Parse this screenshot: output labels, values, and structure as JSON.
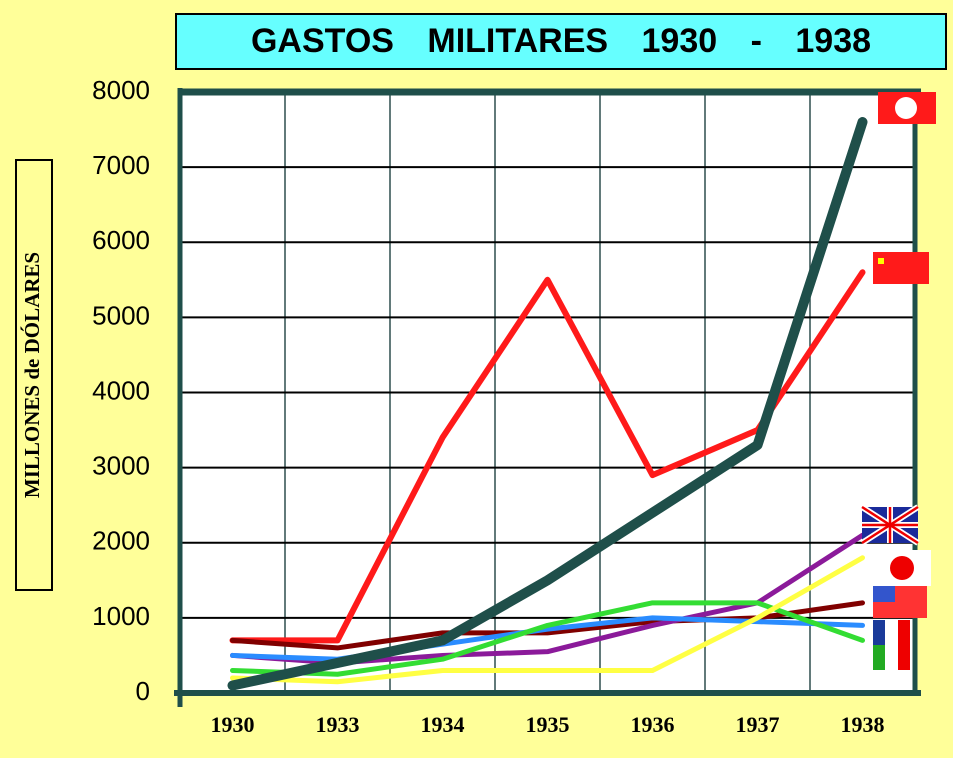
{
  "chart_data": {
    "type": "line",
    "title": "GASTOS MILITARES 1930 - 1938",
    "y_label": "MILLONES de DÓLARES",
    "categories": [
      "1930",
      "1933",
      "1934",
      "1935",
      "1936",
      "1937",
      "1938"
    ],
    "ylim": [
      0,
      8000
    ],
    "yticks": [
      0,
      1000,
      2000,
      3000,
      4000,
      5000,
      6000,
      7000,
      8000
    ],
    "grid": true,
    "series": [
      {
        "color": "#ff1a1a",
        "values": [
          700,
          700,
          3400,
          5500,
          2900,
          3500,
          5600
        ]
      },
      {
        "color": "#800000",
        "values": [
          700,
          600,
          800,
          800,
          950,
          1000,
          1200
        ]
      },
      {
        "color": "#8b1a9a",
        "values": [
          500,
          400,
          500,
          550,
          900,
          1200,
          2100
        ]
      },
      {
        "color": "#2a8cff",
        "values": [
          500,
          450,
          650,
          850,
          1000,
          950,
          900
        ]
      },
      {
        "color": "#33dd33",
        "values": [
          300,
          250,
          450,
          900,
          1200,
          1200,
          700
        ]
      },
      {
        "color": "#ffff44",
        "values": [
          200,
          150,
          300,
          300,
          300,
          1000,
          1800
        ]
      },
      {
        "color": "#1f4f4a",
        "values": [
          100,
          400,
          700,
          1500,
          2400,
          3300,
          7600
        ]
      }
    ]
  }
}
